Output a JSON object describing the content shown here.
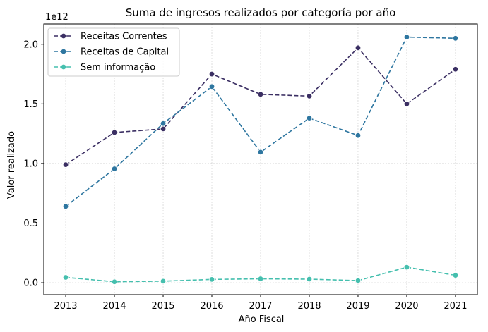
{
  "chart_data": {
    "type": "line",
    "title": "Suma de ingresos realizados por categoría por año",
    "xlabel": "Año Fiscal",
    "ylabel": "Valor realizado",
    "y_offset_label": "1e12",
    "x": [
      2013,
      2014,
      2015,
      2016,
      2017,
      2018,
      2019,
      2020,
      2021
    ],
    "x_tick_labels": [
      "2013",
      "2014",
      "2015",
      "2016",
      "2017",
      "2018",
      "2019",
      "2020",
      "2021"
    ],
    "y_ticks": [
      0.0,
      0.5,
      1.0,
      1.5,
      2.0
    ],
    "y_tick_labels": [
      "0.0",
      "0.5",
      "1.0",
      "1.5",
      "2.0"
    ],
    "ylim": [
      -0.1,
      2.17
    ],
    "xlim": [
      2012.55,
      2021.45
    ],
    "grid": true,
    "legend_position": "top-left",
    "line_style": "dashed",
    "markers": "circle",
    "series": [
      {
        "name": "Receitas Correntes",
        "color": "#3b2f63",
        "values": [
          0.99,
          1.26,
          1.29,
          1.75,
          1.58,
          1.565,
          1.97,
          1.5,
          1.79
        ]
      },
      {
        "name": "Receitas de Capital",
        "color": "#2e76a0",
        "values": [
          0.64,
          0.955,
          1.335,
          1.645,
          1.095,
          1.38,
          1.235,
          2.06,
          2.05
        ]
      },
      {
        "name": "Sem informação",
        "color": "#45bfae",
        "values": [
          0.045,
          0.008,
          0.013,
          0.028,
          0.033,
          0.03,
          0.018,
          0.13,
          0.062
        ]
      }
    ]
  }
}
